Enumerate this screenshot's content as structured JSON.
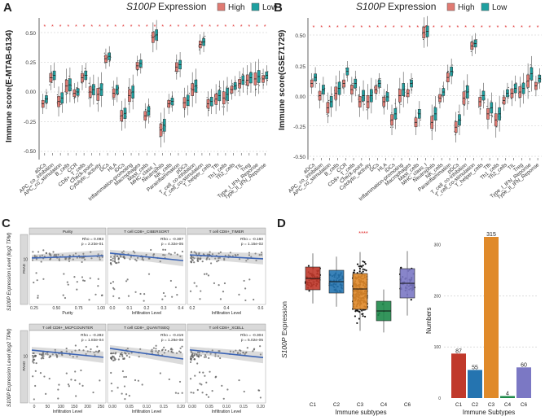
{
  "colors": {
    "high": "#e07a72",
    "low": "#1ea0a0",
    "star": "#e03030",
    "trend": "#3a63b5",
    "c1": "#c0392b",
    "c2": "#2574b0",
    "c3": "#e08a2a",
    "c4": "#1e8a4a",
    "c6": "#7b78c4"
  },
  "panelA": {
    "letter": "A",
    "gene": "S100P",
    "title_suffix": " Expression",
    "legend": [
      "High",
      "Low"
    ],
    "ylabel": "Immune score(E-MTAB-6134)",
    "yticks": [
      "0.50",
      "0.25",
      "0.00",
      "-0.25",
      "-0.50"
    ],
    "cells": [
      "aDCs",
      "APC_co_inhibition",
      "APC_co_stimulation",
      "B_cells",
      "CCR",
      "CD8+_T_cells",
      "Check-point",
      "Cytolytic_activity",
      "DCs",
      "HLA",
      "iDCs",
      "Inflammation-promoting",
      "Macrophages",
      "Mast_cells",
      "MHC_class_I",
      "Neutrophils",
      "NK_cells",
      "Parainflammation",
      "pDCs",
      "T_cell_co-inhibition",
      "T_cell_co-stimulation",
      "T_helper_cells",
      "Tfh",
      "Th1_cells",
      "Th2_cells",
      "TIL",
      "Treg",
      "Type_I_IFN_Reponse",
      "Type_II_IFN_Reponse"
    ]
  },
  "panelB": {
    "letter": "B",
    "gene": "S100P",
    "title_suffix": " Expression",
    "legend": [
      "High",
      "Low"
    ],
    "ylabel": "Immune score(GSE71729)",
    "yticks": [
      "0.50",
      "0.25",
      "0.00",
      "-0.25",
      "-0.50"
    ]
  },
  "panelC": {
    "letter": "C",
    "ylabel_top": "S100P Expression Level (log2 TPM)",
    "ylabel_bottom": "S100P Expression Level (log2 TPM)",
    "strip": "PAAD",
    "xlabel": "Infiltration Level",
    "facets": [
      {
        "title": "Purity",
        "xlabel": "Purity",
        "rho": "Rho = 0.093",
        "p": "p = 2.23e-01",
        "xticks": [
          "0.25",
          "0.50",
          "0.75",
          "1.00"
        ]
      },
      {
        "title": "T cell CD8+_CIBERSORT",
        "xlabel": "Infiltration Level",
        "rho": "Rho = -0.307",
        "p": "p = 4.32e-05",
        "xticks": [
          "0.0",
          "0.1",
          "0.2",
          "0.3",
          "0.4"
        ]
      },
      {
        "title": "T cell CD8+_TIMER",
        "xlabel": "Infiltration Level",
        "rho": "Rho = -0.160",
        "p": "p = 1.15e-02",
        "xticks": [
          "0.2",
          "0.4",
          "0.6"
        ]
      },
      {
        "title": "T cell CD8+_MCPCOUNTER",
        "xlabel": "Infiltration Level",
        "rho": "Rho = -0.282",
        "p": "p = 1.83e-04",
        "xticks": [
          "0",
          "50",
          "100",
          "150",
          "200",
          "250"
        ]
      },
      {
        "title": "T cell CD8+_QUANTISEQ",
        "xlabel": "Infiltration Level",
        "rho": "Rho = -0.419",
        "p": "p = 1.26e-08",
        "xticks": [
          "0.00",
          "0.05",
          "0.10",
          "0.15",
          "0.20"
        ]
      },
      {
        "title": "T cell CD8+_XCELL",
        "xlabel": "Infiltration Level",
        "rho": "Rho = -0.304",
        "p": "p = 5.02e-05",
        "xticks": [
          "0.00",
          "0.05",
          "0.10",
          "0.15",
          "0.20"
        ]
      }
    ],
    "yticks": [
      "15",
      "10",
      "5",
      "0"
    ]
  },
  "panelD": {
    "letter": "D",
    "ylabel": "S100P Expression",
    "xlabel": "Immune subtypes",
    "sig": "****",
    "bar_ylabel": "Numbers",
    "bar_xlabel": "Immune Subtypes",
    "subtypes": [
      "C1",
      "C2",
      "C3",
      "C4",
      "C6"
    ],
    "bar_yticks": [
      "0",
      "100",
      "200",
      "300"
    ]
  },
  "chart_data": [
    {
      "type": "box",
      "panel": "A",
      "title": "S100P Expression",
      "ylabel": "Immune score(E-MTAB-6134)",
      "ylim": [
        -0.55,
        0.6
      ],
      "categories": [
        "aDCs",
        "APC_co_inhibition",
        "APC_co_stimulation",
        "B_cells",
        "CCR",
        "CD8+_T_cells",
        "Check-point",
        "Cytolytic_activity",
        "DCs",
        "HLA",
        "iDCs",
        "Inflammation-promoting",
        "Macrophages",
        "Mast_cells",
        "MHC_class_I",
        "Neutrophils",
        "NK_cells",
        "Parainflammation",
        "pDCs",
        "T_cell_co-inhibition",
        "T_cell_co-stimulation",
        "T_helper_cells",
        "Tfh",
        "Th1_cells",
        "Th2_cells",
        "TIL",
        "Treg",
        "Type_I_IFN_Reponse",
        "Type_II_IFN_Reponse"
      ],
      "significance": [
        "*",
        "*",
        "*",
        "*",
        "*",
        "*",
        "*",
        "*",
        "*",
        "*",
        "*",
        "*",
        "*",
        "*",
        "*",
        "*",
        "*",
        "*",
        "*",
        "*",
        "*",
        "*",
        "*",
        "*",
        "*",
        "*",
        "*",
        "*",
        "*"
      ],
      "series": [
        {
          "name": "High",
          "medians": [
            -0.1,
            0.12,
            -0.08,
            0.05,
            -0.01,
            0.12,
            0.0,
            -0.02,
            0.28,
            -0.01,
            -0.2,
            -0.03,
            0.22,
            -0.2,
            0.46,
            -0.32,
            -0.1,
            0.21,
            -0.09,
            0.02,
            0.4,
            -0.1,
            -0.06,
            -0.05,
            0.02,
            0.07,
            0.1,
            0.11,
            0.11
          ]
        },
        {
          "name": "Low",
          "medians": [
            -0.06,
            0.14,
            -0.05,
            0.06,
            0.0,
            0.14,
            0.02,
            0.02,
            0.3,
            0.02,
            -0.18,
            0.0,
            0.24,
            -0.16,
            0.48,
            -0.28,
            -0.08,
            0.23,
            -0.07,
            0.05,
            0.42,
            -0.08,
            -0.03,
            -0.02,
            0.05,
            0.1,
            0.12,
            0.13,
            0.14
          ]
        }
      ]
    },
    {
      "type": "box",
      "panel": "B",
      "title": "S100P Expression",
      "ylabel": "Immune score(GSE71729)",
      "ylim": [
        -0.55,
        0.6
      ],
      "categories": [
        "aDCs",
        "APC_co_inhibition",
        "APC_co_stimulation",
        "B_cells",
        "CCR",
        "CD8+_T_cells",
        "Check-point",
        "Cytolytic_activity",
        "DCs",
        "HLA",
        "iDCs",
        "Inflammation-promoting",
        "Macrophages",
        "Mast_cells",
        "MHC_class_I",
        "Neutrophils",
        "NK_cells",
        "Parainflammation",
        "pDCs",
        "T_cell_co-inhibition",
        "T_cell_co-stimulation",
        "T_helper_cells",
        "Tfh",
        "Th1_cells",
        "Th2_cells",
        "TIL",
        "Treg",
        "Type_I_IFN_Reponse",
        "Type_II_IFN_Reponse"
      ],
      "significance": [
        "*",
        "*",
        "*",
        "*",
        "*",
        "*",
        "*",
        "*",
        "*",
        "*",
        "*",
        "*",
        "*",
        "*",
        "*",
        "*",
        "*",
        "*",
        "*",
        "*",
        "*",
        "*",
        "*",
        "*",
        "*",
        "*",
        "*",
        "*",
        "*"
      ],
      "series": [
        {
          "name": "High",
          "medians": [
            0.1,
            0.0,
            -0.1,
            0.02,
            0.1,
            0.05,
            -0.05,
            -0.05,
            0.05,
            -0.05,
            -0.2,
            0.0,
            0.02,
            -0.22,
            0.52,
            -0.22,
            -0.02,
            0.15,
            -0.26,
            -0.02,
            0.41,
            -0.05,
            -0.15,
            -0.2,
            -0.04,
            0.02,
            0.03,
            0.12,
            0.08
          ]
        },
        {
          "name": "Low",
          "medians": [
            0.15,
            0.05,
            -0.05,
            0.06,
            0.2,
            0.1,
            0.0,
            0.0,
            0.1,
            -0.01,
            -0.15,
            0.05,
            0.1,
            -0.15,
            0.53,
            -0.15,
            0.03,
            0.2,
            -0.2,
            0.03,
            0.43,
            0.0,
            -0.1,
            -0.15,
            0.02,
            0.06,
            0.06,
            0.18,
            0.14
          ]
        }
      ]
    },
    {
      "type": "scatter",
      "panel": "C",
      "facets": [
        "Purity",
        "T cell CD8+_CIBERSORT",
        "T cell CD8+_TIMER",
        "T cell CD8+_MCPCOUNTER",
        "T cell CD8+_QUANTISEQ",
        "T cell CD8+_XCELL"
      ],
      "rho": [
        0.093,
        -0.307,
        -0.16,
        -0.282,
        -0.419,
        -0.304
      ],
      "p": [
        "2.23e-01",
        "4.32e-05",
        "1.15e-02",
        "1.83e-04",
        "1.26e-08",
        "5.02e-05"
      ],
      "ylabel": "S100P Expression Level (log2 TPM)"
    },
    {
      "type": "box",
      "panel": "D-left",
      "categories": [
        "C1",
        "C2",
        "C3",
        "C4",
        "C6"
      ],
      "medians": [
        0.0,
        -0.01,
        -0.15,
        -0.2,
        -0.05
      ],
      "significance": "****",
      "ylabel": "S100P Expression",
      "xlabel": "Immune subtypes"
    },
    {
      "type": "bar",
      "panel": "D-right",
      "categories": [
        "C1",
        "C2",
        "C3",
        "C4",
        "C6"
      ],
      "values": [
        87,
        55,
        315,
        4,
        60
      ],
      "ylabel": "Numbers",
      "xlabel": "Immune Subtypes",
      "ylim": [
        0,
        320
      ]
    }
  ]
}
